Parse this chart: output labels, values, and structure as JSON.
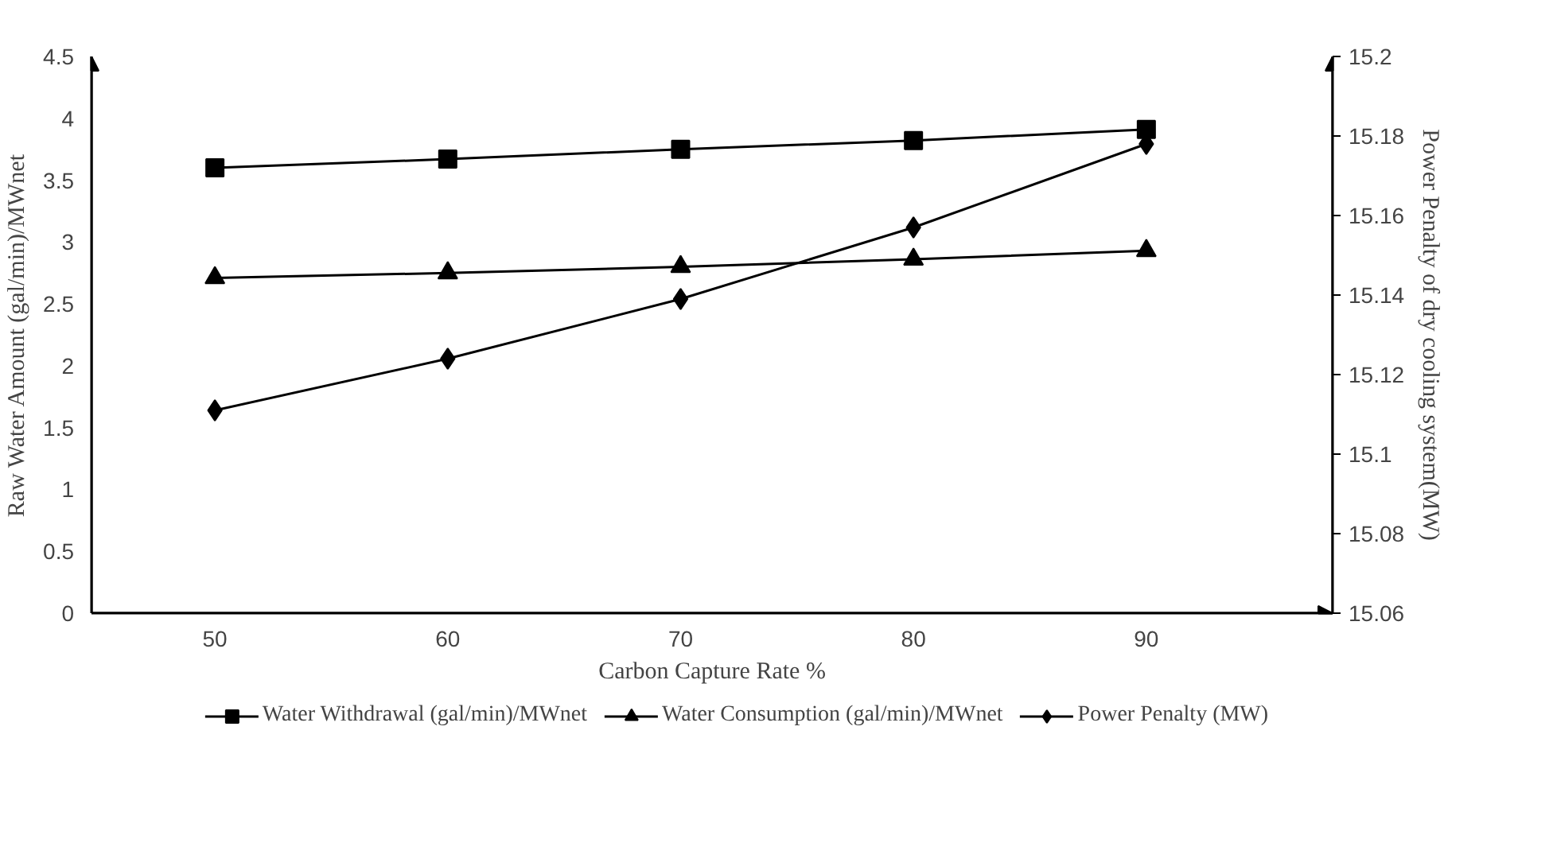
{
  "chart_data": {
    "type": "line",
    "xlabel": "Carbon Capture Rate %",
    "ylabel": "Raw Water Amount (gal/min)/MWnet",
    "y2label": "Power Penalty of dry cooling system(MW)",
    "categories": [
      "50",
      "60",
      "70",
      "80",
      "90"
    ],
    "series": [
      {
        "name": "Water Withdrawal (gal/min)/MWnet",
        "color": "#000000",
        "marker": "square",
        "values": [
          3.6,
          3.67,
          3.75,
          3.82,
          3.91
        ]
      },
      {
        "name": "Water Consumption (gal/min)/MWnet",
        "color": "#000000",
        "marker": "triangle",
        "values": [
          2.71,
          2.75,
          2.8,
          2.86,
          2.93
        ]
      },
      {
        "name": "Power Penalty (MW)",
        "color": "#000000",
        "marker": "diamond",
        "axis": "y2",
        "values": [
          15.111,
          15.124,
          15.139,
          15.157,
          15.178
        ]
      }
    ],
    "ylim": [
      0,
      4.5
    ],
    "yticks": [
      0,
      0.5,
      1,
      1.5,
      2,
      2.5,
      3,
      3.5,
      4,
      4.5
    ],
    "y2lim": [
      15.06,
      15.2
    ],
    "y2ticks": [
      15.06,
      15.08,
      15.1,
      15.12,
      15.14,
      15.16,
      15.18,
      15.2
    ],
    "grid": false,
    "legend": "bottom",
    "line_style": "solid"
  }
}
